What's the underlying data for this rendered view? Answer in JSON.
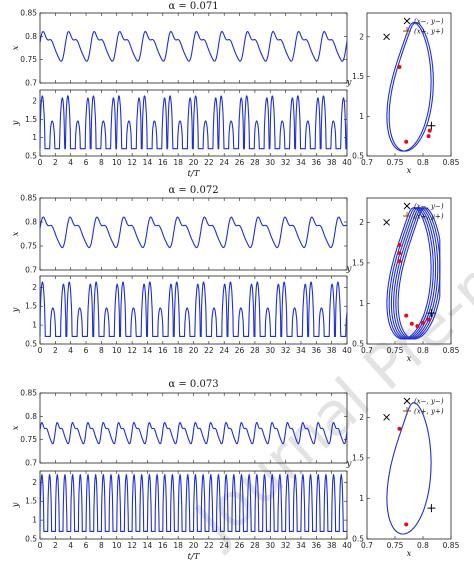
{
  "watermark": "Journal Pre-proofs",
  "chart_data": [
    {
      "type": "line",
      "title": "α = 0.071",
      "time_series": {
        "xlabel": "t/T",
        "xlim": [
          0,
          40
        ],
        "xticks": [
          0,
          2,
          4,
          6,
          8,
          10,
          12,
          14,
          16,
          18,
          20,
          22,
          24,
          26,
          28,
          30,
          32,
          34,
          36,
          38,
          40
        ],
        "x_panel": {
          "ylabel": "x",
          "ylim": [
            0.7,
            0.85
          ],
          "yticks": [
            0.7,
            0.75,
            0.8,
            0.85
          ],
          "period": 3.33,
          "mean": 0.78,
          "amp": 0.035
        },
        "y_panel": {
          "ylabel": "y",
          "ylim": [
            0.5,
            2.3
          ],
          "yticks": [
            0.5,
            1,
            1.5,
            2
          ],
          "period": 3.33,
          "low": 0.7,
          "high": 2.2
        }
      },
      "phase": {
        "xlabel": "x",
        "ylabel": "y",
        "xlim": [
          0.7,
          0.85
        ],
        "ylim": [
          0.5,
          2.3
        ],
        "xticks": [
          0.7,
          0.75,
          0.8,
          0.85
        ],
        "yticks": [
          0.5,
          1,
          1.5,
          2
        ],
        "legend": [
          "(x−, y−)",
          "(x+, y+)"
        ],
        "fixed_points": [
          {
            "x": 0.735,
            "y": 2.0,
            "marker": "x"
          },
          {
            "x": 0.815,
            "y": 0.88,
            "marker": "+"
          }
        ],
        "poincare_points": [
          [
            0.758,
            1.62
          ],
          [
            0.77,
            0.68
          ],
          [
            0.81,
            0.75
          ],
          [
            0.812,
            0.82
          ]
        ],
        "orbit_loops": 2
      }
    },
    {
      "type": "line",
      "title": "α = 0.072",
      "time_series": {
        "xlabel": "t/T",
        "xlim": [
          0,
          40
        ],
        "xticks": [
          0,
          2,
          4,
          6,
          8,
          10,
          12,
          14,
          16,
          18,
          20,
          22,
          24,
          26,
          28,
          30,
          32,
          34,
          36,
          38,
          40
        ],
        "x_panel": {
          "ylabel": "x",
          "ylim": [
            0.7,
            0.85
          ],
          "yticks": [
            0.7,
            0.75,
            0.8,
            0.85
          ],
          "period": 3.5,
          "mean": 0.78,
          "amp": 0.035
        },
        "y_panel": {
          "ylabel": "y",
          "ylim": [
            0.5,
            2.3
          ],
          "yticks": [
            0.5,
            1,
            1.5,
            2
          ],
          "period": 3.5,
          "low": 0.7,
          "high": 2.2
        }
      },
      "phase": {
        "xlabel": "x",
        "ylabel": "y",
        "xlim": [
          0.7,
          0.85
        ],
        "ylim": [
          0.5,
          2.3
        ],
        "xticks": [
          0.7,
          0.75,
          0.8,
          0.85
        ],
        "yticks": [
          0.5,
          1,
          1.5,
          2
        ],
        "legend": [
          "(x−, y−)",
          "(x+, y+)"
        ],
        "fixed_points": [
          {
            "x": 0.735,
            "y": 2.0,
            "marker": "x"
          },
          {
            "x": 0.815,
            "y": 0.88,
            "marker": "+"
          }
        ],
        "poincare_points": [
          [
            0.758,
            1.72
          ],
          [
            0.758,
            1.62
          ],
          [
            0.758,
            1.52
          ],
          [
            0.77,
            0.85
          ],
          [
            0.78,
            0.75
          ],
          [
            0.79,
            0.72
          ],
          [
            0.8,
            0.76
          ],
          [
            0.81,
            0.8
          ]
        ],
        "orbit_loops": 6
      }
    },
    {
      "type": "line",
      "title": "α = 0.073",
      "time_series": {
        "xlabel": "t/T",
        "xlim": [
          0,
          40
        ],
        "xticks": [
          0,
          2,
          4,
          6,
          8,
          10,
          12,
          14,
          16,
          18,
          20,
          22,
          24,
          26,
          28,
          30,
          32,
          34,
          36,
          38,
          40
        ],
        "x_panel": {
          "ylabel": "x",
          "ylim": [
            0.7,
            0.85
          ],
          "yticks": [
            0.7,
            0.75,
            0.8,
            0.85
          ],
          "period": 2.0,
          "mean": 0.765,
          "amp": 0.025
        },
        "y_panel": {
          "ylabel": "y",
          "ylim": [
            0.5,
            2.3
          ],
          "yticks": [
            0.5,
            1,
            1.5,
            2
          ],
          "period": 2.0,
          "low": 0.7,
          "high": 2.2
        }
      },
      "phase": {
        "xlabel": "x",
        "ylabel": "y",
        "xlim": [
          0.7,
          0.85
        ],
        "ylim": [
          0.5,
          2.3
        ],
        "xticks": [
          0.7,
          0.75,
          0.8,
          0.85
        ],
        "yticks": [
          0.5,
          1,
          1.5,
          2
        ],
        "legend": [
          "(x−, y−)",
          "(x+, y+)"
        ],
        "fixed_points": [
          {
            "x": 0.735,
            "y": 2.0,
            "marker": "x"
          },
          {
            "x": 0.815,
            "y": 0.88,
            "marker": "+"
          }
        ],
        "poincare_points": [
          [
            0.758,
            1.86
          ],
          [
            0.77,
            0.68
          ]
        ],
        "orbit_loops": 1
      }
    }
  ],
  "colors": {
    "curve": "#1f2fd0",
    "poincare": "#e01010",
    "axis": "#222222",
    "watermark": "#e3e3e3"
  }
}
